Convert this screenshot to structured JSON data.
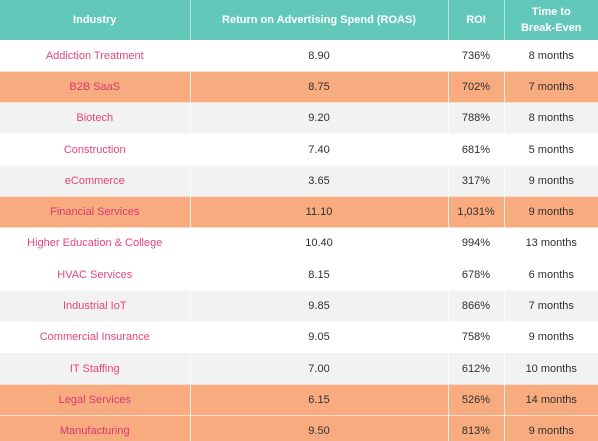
{
  "table": {
    "headers": {
      "industry": "Industry",
      "roas": "Return on Advertising Spend (ROAS)",
      "roi": "ROI",
      "break_even_line1": "Time to",
      "break_even_line2": "Break-Even"
    },
    "rows": [
      {
        "industry": "Addiction Treatment",
        "roas": "8.90",
        "roi": "736%",
        "break_even": "8 months",
        "highlight": "white"
      },
      {
        "industry": "B2B SaaS",
        "roas": "8.75",
        "roi": "702%",
        "break_even": "7 months",
        "highlight": "orange"
      },
      {
        "industry": "Biotech",
        "roas": "9.20",
        "roi": "788%",
        "break_even": "8 months",
        "highlight": "gray"
      },
      {
        "industry": "Construction",
        "roas": "7.40",
        "roi": "681%",
        "break_even": "5 months",
        "highlight": "white"
      },
      {
        "industry": "eCommerce",
        "roas": "3.65",
        "roi": "317%",
        "break_even": "9 months",
        "highlight": "gray"
      },
      {
        "industry": "Financial Services",
        "roas": "11.10",
        "roi": "1,031%",
        "break_even": "9 months",
        "highlight": "orange"
      },
      {
        "industry": "Higher Education & College",
        "roas": "10.40",
        "roi": "994%",
        "break_even": "13 months",
        "highlight": "white"
      },
      {
        "industry": "HVAC Services",
        "roas": "8.15",
        "roi": "678%",
        "break_even": "6 months",
        "highlight": "white"
      },
      {
        "industry": "Industrial IoT",
        "roas": "9.85",
        "roi": "866%",
        "break_even": "7 months",
        "highlight": "gray"
      },
      {
        "industry": "Commercial Insurance",
        "roas": "9.05",
        "roi": "758%",
        "break_even": "9 months",
        "highlight": "white"
      },
      {
        "industry": "IT Staffing",
        "roas": "7.00",
        "roi": "612%",
        "break_even": "10 months",
        "highlight": "gray"
      },
      {
        "industry": "Legal Services",
        "roas": "6.15",
        "roi": "526%",
        "break_even": "14 months",
        "highlight": "orange"
      },
      {
        "industry": "Manufacturing",
        "roas": "9.50",
        "roi": "813%",
        "break_even": "9 months",
        "highlight": "orange"
      }
    ]
  },
  "colors": {
    "header_bg": "#62c9ba",
    "industry_text": "#e8437f",
    "highlight_orange": "#f9ab80",
    "row_gray": "#f2f2f2"
  }
}
